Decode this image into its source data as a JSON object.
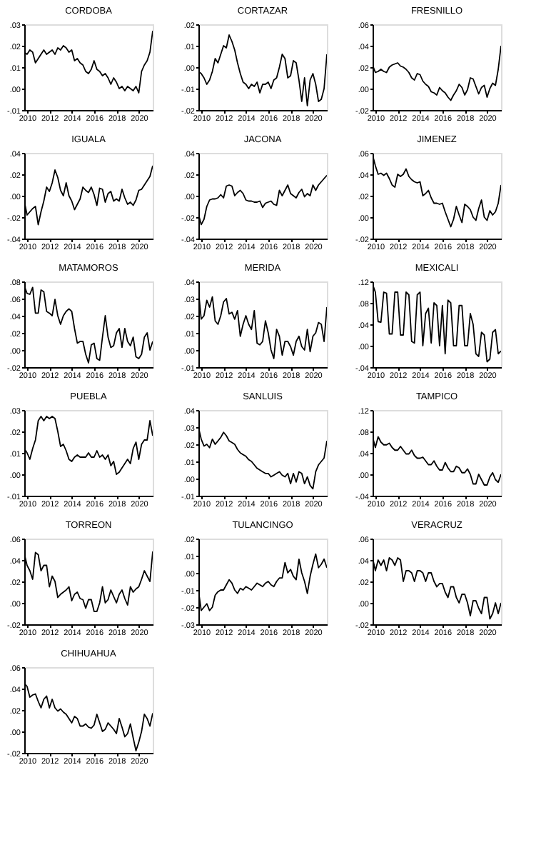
{
  "chart_data": [
    {
      "type": "line",
      "title": "CORDOBA",
      "color": "#000000",
      "xlim": [
        2009.75,
        2021.25
      ],
      "xticks": [
        2010,
        2012,
        2014,
        2016,
        2018,
        2020
      ],
      "ylim": [
        -0.01,
        0.03
      ],
      "yticks": [
        {
          "value": -0.01,
          "label": "-.01"
        },
        {
          "value": 0,
          "label": ".00"
        },
        {
          "value": 0.01,
          "label": ".01"
        },
        {
          "value": 0.02,
          "label": ".02"
        },
        {
          "value": 0.03,
          "label": ".03"
        }
      ],
      "x": [
        2009.75,
        2010,
        2010.25,
        2010.5,
        2010.75,
        2011,
        2011.25,
        2011.5,
        2011.75,
        2012,
        2012.25,
        2012.5,
        2012.75,
        2013,
        2013.25,
        2013.5,
        2013.75,
        2014,
        2014.25,
        2014.5,
        2014.75,
        2015,
        2015.25,
        2015.5,
        2015.75,
        2016,
        2016.25,
        2016.5,
        2016.75,
        2017,
        2017.25,
        2017.5,
        2017.75,
        2018,
        2018.25,
        2018.5,
        2018.75,
        2019,
        2019.25,
        2019.5,
        2019.75,
        2020,
        2020.25,
        2020.5,
        2020.75,
        2021,
        2021.25
      ],
      "values": [
        0.017,
        0.016,
        0.018,
        0.017,
        0.012,
        0.014,
        0.016,
        0.018,
        0.016,
        0.017,
        0.018,
        0.016,
        0.019,
        0.018,
        0.02,
        0.019,
        0.017,
        0.018,
        0.013,
        0.014,
        0.012,
        0.011,
        0.008,
        0.007,
        0.009,
        0.013,
        0.009,
        0.008,
        0.006,
        0.007,
        0.005,
        0.002,
        0.005,
        0.003,
        0.0,
        0.001,
        -0.001,
        0.001,
        0.0,
        -0.001,
        0.001,
        -0.002,
        0.008,
        0.011,
        0.013,
        0.017,
        0.027
      ]
    },
    {
      "type": "line",
      "title": "CORTAZAR",
      "color": "#000000",
      "xlim": [
        2009.75,
        2021.25
      ],
      "xticks": [
        2010,
        2012,
        2014,
        2016,
        2018,
        2020
      ],
      "ylim": [
        -0.02,
        0.02
      ],
      "yticks": [
        {
          "value": -0.02,
          "label": "-.02"
        },
        {
          "value": -0.01,
          "label": "-.01"
        },
        {
          "value": 0,
          "label": ".00"
        },
        {
          "value": 0.01,
          "label": ".01"
        },
        {
          "value": 0.02,
          "label": ".02"
        }
      ],
      "x": [
        2009.75,
        2010,
        2010.25,
        2010.5,
        2010.75,
        2011,
        2011.25,
        2011.5,
        2011.75,
        2012,
        2012.25,
        2012.5,
        2012.75,
        2013,
        2013.25,
        2013.5,
        2013.75,
        2014,
        2014.25,
        2014.5,
        2014.75,
        2015,
        2015.25,
        2015.5,
        2015.75,
        2016,
        2016.25,
        2016.5,
        2016.75,
        2017,
        2017.25,
        2017.5,
        2017.75,
        2018,
        2018.25,
        2018.5,
        2018.75,
        2019,
        2019.25,
        2019.5,
        2019.75,
        2020,
        2020.25,
        2020.5,
        2020.75,
        2021,
        2021.25
      ],
      "values": [
        -0.002,
        -0.003,
        -0.005,
        -0.008,
        -0.006,
        -0.002,
        0.004,
        0.002,
        0.006,
        0.01,
        0.009,
        0.015,
        0.012,
        0.008,
        0.002,
        -0.003,
        -0.007,
        -0.008,
        -0.01,
        -0.008,
        -0.009,
        -0.007,
        -0.012,
        -0.008,
        -0.008,
        -0.007,
        -0.01,
        -0.006,
        -0.005,
        0.0,
        0.006,
        0.004,
        -0.005,
        -0.004,
        0.003,
        0.002,
        -0.006,
        -0.016,
        -0.005,
        -0.018,
        -0.006,
        -0.003,
        -0.008,
        -0.016,
        -0.015,
        -0.01,
        0.006
      ]
    },
    {
      "type": "line",
      "title": "FRESNILLO",
      "color": "#000000",
      "xlim": [
        2009.75,
        2021.25
      ],
      "xticks": [
        2010,
        2012,
        2014,
        2016,
        2018,
        2020
      ],
      "ylim": [
        -0.02,
        0.06
      ],
      "yticks": [
        {
          "value": -0.02,
          "label": "-.02"
        },
        {
          "value": 0,
          "label": ".00"
        },
        {
          "value": 0.02,
          "label": ".02"
        },
        {
          "value": 0.04,
          "label": ".04"
        },
        {
          "value": 0.06,
          "label": ".06"
        }
      ],
      "x": [
        2009.75,
        2010,
        2010.25,
        2010.5,
        2010.75,
        2011,
        2011.25,
        2011.5,
        2011.75,
        2012,
        2012.25,
        2012.5,
        2012.75,
        2013,
        2013.25,
        2013.5,
        2013.75,
        2014,
        2014.25,
        2014.5,
        2014.75,
        2015,
        2015.25,
        2015.5,
        2015.75,
        2016,
        2016.25,
        2016.5,
        2016.75,
        2017,
        2017.25,
        2017.5,
        2017.75,
        2018,
        2018.25,
        2018.5,
        2018.75,
        2019,
        2019.25,
        2019.5,
        2019.75,
        2020,
        2020.25,
        2020.5,
        2020.75,
        2021,
        2021.25
      ],
      "values": [
        0.022,
        0.015,
        0.016,
        0.018,
        0.016,
        0.015,
        0.02,
        0.022,
        0.023,
        0.024,
        0.021,
        0.02,
        0.018,
        0.015,
        0.01,
        0.008,
        0.014,
        0.013,
        0.007,
        0.004,
        0.002,
        -0.003,
        -0.004,
        -0.006,
        0.001,
        -0.002,
        -0.004,
        -0.008,
        -0.011,
        -0.006,
        -0.002,
        0.004,
        0.001,
        -0.006,
        -0.001,
        0.01,
        0.009,
        0.002,
        -0.005,
        0.001,
        0.003,
        -0.008,
        0.0,
        0.005,
        0.003,
        0.018,
        0.04
      ]
    },
    {
      "type": "line",
      "title": "IGUALA",
      "color": "#000000",
      "xlim": [
        2009.75,
        2021.25
      ],
      "xticks": [
        2010,
        2012,
        2014,
        2016,
        2018,
        2020
      ],
      "ylim": [
        -0.04,
        0.04
      ],
      "yticks": [
        {
          "value": -0.04,
          "label": "-.04"
        },
        {
          "value": -0.02,
          "label": "-.02"
        },
        {
          "value": 0,
          "label": ".00"
        },
        {
          "value": 0.02,
          "label": ".02"
        },
        {
          "value": 0.04,
          "label": ".04"
        }
      ],
      "x": [
        2009.75,
        2010,
        2010.25,
        2010.5,
        2010.75,
        2011,
        2011.25,
        2011.5,
        2011.75,
        2012,
        2012.25,
        2012.5,
        2012.75,
        2013,
        2013.25,
        2013.5,
        2013.75,
        2014,
        2014.25,
        2014.5,
        2014.75,
        2015,
        2015.25,
        2015.5,
        2015.75,
        2016,
        2016.25,
        2016.5,
        2016.75,
        2017,
        2017.25,
        2017.5,
        2017.75,
        2018,
        2018.25,
        2018.5,
        2018.75,
        2019,
        2019.25,
        2019.5,
        2019.75,
        2020,
        2020.25,
        2020.5,
        2020.75,
        2021,
        2021.25
      ],
      "values": [
        -0.005,
        -0.018,
        -0.015,
        -0.012,
        -0.01,
        -0.027,
        -0.015,
        -0.005,
        0.008,
        0.004,
        0.012,
        0.024,
        0.017,
        0.005,
        0.0,
        0.012,
        0.0,
        -0.005,
        -0.013,
        -0.008,
        -0.003,
        0.008,
        0.005,
        0.003,
        0.008,
        0.001,
        -0.009,
        0.007,
        0.006,
        -0.006,
        0.002,
        0.004,
        -0.005,
        -0.003,
        -0.005,
        0.006,
        -0.002,
        -0.008,
        -0.006,
        -0.009,
        -0.004,
        0.005,
        0.006,
        0.01,
        0.014,
        0.018,
        0.028
      ]
    },
    {
      "type": "line",
      "title": "JACONA",
      "color": "#000000",
      "xlim": [
        2009.75,
        2021.25
      ],
      "xticks": [
        2010,
        2012,
        2014,
        2016,
        2018,
        2020
      ],
      "ylim": [
        -0.04,
        0.04
      ],
      "yticks": [
        {
          "value": -0.04,
          "label": "-.04"
        },
        {
          "value": -0.02,
          "label": "-.02"
        },
        {
          "value": 0,
          "label": ".00"
        },
        {
          "value": 0.02,
          "label": ".02"
        },
        {
          "value": 0.04,
          "label": ".04"
        }
      ],
      "x": [
        2009.75,
        2010,
        2010.25,
        2010.5,
        2010.75,
        2011,
        2011.25,
        2011.5,
        2011.75,
        2012,
        2012.25,
        2012.5,
        2012.75,
        2013,
        2013.25,
        2013.5,
        2013.75,
        2014,
        2014.25,
        2014.5,
        2014.75,
        2015,
        2015.25,
        2015.5,
        2015.75,
        2016,
        2016.25,
        2016.5,
        2016.75,
        2017,
        2017.25,
        2017.5,
        2017.75,
        2018,
        2018.25,
        2018.5,
        2018.75,
        2019,
        2019.25,
        2019.5,
        2019.75,
        2020,
        2020.25,
        2020.5,
        2020.75,
        2021,
        2021.25
      ],
      "values": [
        -0.017,
        -0.027,
        -0.022,
        -0.01,
        -0.004,
        -0.003,
        -0.003,
        -0.002,
        0.001,
        -0.002,
        0.009,
        0.01,
        0.009,
        0.0,
        0.003,
        0.005,
        0.002,
        -0.004,
        -0.005,
        -0.005,
        -0.006,
        -0.006,
        -0.005,
        -0.011,
        -0.007,
        -0.006,
        -0.005,
        -0.008,
        -0.009,
        0.005,
        0.0,
        0.005,
        0.01,
        0.002,
        0.0,
        -0.002,
        0.003,
        0.006,
        -0.001,
        0.002,
        0.0,
        0.01,
        0.005,
        0.01,
        0.013,
        0.016,
        0.019
      ]
    },
    {
      "type": "line",
      "title": "JIMENEZ",
      "color": "#000000",
      "xlim": [
        2009.75,
        2021.25
      ],
      "xticks": [
        2010,
        2012,
        2014,
        2016,
        2018,
        2020
      ],
      "ylim": [
        -0.02,
        0.06
      ],
      "yticks": [
        {
          "value": -0.02,
          "label": "-.02"
        },
        {
          "value": 0,
          "label": ".00"
        },
        {
          "value": 0.02,
          "label": ".02"
        },
        {
          "value": 0.04,
          "label": ".04"
        },
        {
          "value": 0.06,
          "label": ".06"
        }
      ],
      "x": [
        2009.75,
        2010,
        2010.25,
        2010.5,
        2010.75,
        2011,
        2011.25,
        2011.5,
        2011.75,
        2012,
        2012.25,
        2012.5,
        2012.75,
        2013,
        2013.25,
        2013.5,
        2013.75,
        2014,
        2014.25,
        2014.5,
        2014.75,
        2015,
        2015.25,
        2015.5,
        2015.75,
        2016,
        2016.25,
        2016.5,
        2016.75,
        2017,
        2017.25,
        2017.5,
        2017.75,
        2018,
        2018.25,
        2018.5,
        2018.75,
        2019,
        2019.25,
        2019.5,
        2019.75,
        2020,
        2020.25,
        2020.5,
        2020.75,
        2021,
        2021.25
      ],
      "values": [
        0.058,
        0.048,
        0.04,
        0.041,
        0.039,
        0.041,
        0.036,
        0.03,
        0.028,
        0.04,
        0.038,
        0.04,
        0.045,
        0.038,
        0.035,
        0.033,
        0.032,
        0.033,
        0.02,
        0.022,
        0.025,
        0.018,
        0.013,
        0.013,
        0.012,
        0.013,
        0.005,
        -0.002,
        -0.009,
        -0.002,
        0.01,
        0.002,
        -0.005,
        0.012,
        0.01,
        0.007,
        0.0,
        -0.003,
        0.008,
        0.016,
        0.0,
        -0.003,
        0.006,
        0.002,
        0.005,
        0.013,
        0.03
      ]
    },
    {
      "type": "line",
      "title": "MATAMOROS",
      "color": "#000000",
      "xlim": [
        2009.75,
        2021.25
      ],
      "xticks": [
        2010,
        2012,
        2014,
        2016,
        2018,
        2020
      ],
      "ylim": [
        -0.02,
        0.08
      ],
      "yticks": [
        {
          "value": -0.02,
          "label": "-.02"
        },
        {
          "value": 0,
          "label": ".00"
        },
        {
          "value": 0.02,
          "label": ".02"
        },
        {
          "value": 0.04,
          "label": ".04"
        },
        {
          "value": 0.06,
          "label": ".06"
        },
        {
          "value": 0.08,
          "label": ".08"
        }
      ],
      "x": [
        2009.75,
        2010,
        2010.25,
        2010.5,
        2010.75,
        2011,
        2011.25,
        2011.5,
        2011.75,
        2012,
        2012.25,
        2012.5,
        2012.75,
        2013,
        2013.25,
        2013.5,
        2013.75,
        2014,
        2014.25,
        2014.5,
        2014.75,
        2015,
        2015.25,
        2015.5,
        2015.75,
        2016,
        2016.25,
        2016.5,
        2016.75,
        2017,
        2017.25,
        2017.5,
        2017.75,
        2018,
        2018.25,
        2018.5,
        2018.75,
        2019,
        2019.25,
        2019.5,
        2019.75,
        2020,
        2020.25,
        2020.5,
        2020.75,
        2021,
        2021.25
      ],
      "values": [
        0.075,
        0.066,
        0.065,
        0.073,
        0.043,
        0.043,
        0.07,
        0.068,
        0.045,
        0.043,
        0.04,
        0.059,
        0.04,
        0.03,
        0.04,
        0.045,
        0.048,
        0.045,
        0.025,
        0.008,
        0.01,
        0.01,
        -0.005,
        -0.015,
        0.006,
        0.008,
        -0.01,
        -0.012,
        0.015,
        0.04,
        0.015,
        0.003,
        0.005,
        0.02,
        0.025,
        0.003,
        0.025,
        0.01,
        0.005,
        0.015,
        -0.008,
        -0.01,
        -0.005,
        0.015,
        0.02,
        0.0,
        0.01
      ]
    },
    {
      "type": "line",
      "title": "MERIDA",
      "color": "#000000",
      "xlim": [
        2009.75,
        2021.25
      ],
      "xticks": [
        2010,
        2012,
        2014,
        2016,
        2018,
        2020
      ],
      "ylim": [
        -0.01,
        0.04
      ],
      "yticks": [
        {
          "value": -0.01,
          "label": "-.01"
        },
        {
          "value": 0,
          "label": ".00"
        },
        {
          "value": 0.01,
          "label": ".01"
        },
        {
          "value": 0.02,
          "label": ".02"
        },
        {
          "value": 0.03,
          "label": ".03"
        },
        {
          "value": 0.04,
          "label": ".04"
        }
      ],
      "x": [
        2009.75,
        2010,
        2010.25,
        2010.5,
        2010.75,
        2011,
        2011.25,
        2011.5,
        2011.75,
        2012,
        2012.25,
        2012.5,
        2012.75,
        2013,
        2013.25,
        2013.5,
        2013.75,
        2014,
        2014.25,
        2014.5,
        2014.75,
        2015,
        2015.25,
        2015.5,
        2015.75,
        2016,
        2016.25,
        2016.5,
        2016.75,
        2017,
        2017.25,
        2017.5,
        2017.75,
        2018,
        2018.25,
        2018.5,
        2018.75,
        2019,
        2019.25,
        2019.5,
        2019.75,
        2020,
        2020.25,
        2020.5,
        2020.75,
        2021,
        2021.25
      ],
      "values": [
        0.035,
        0.018,
        0.02,
        0.029,
        0.025,
        0.031,
        0.017,
        0.015,
        0.02,
        0.028,
        0.03,
        0.021,
        0.022,
        0.018,
        0.023,
        0.008,
        0.015,
        0.02,
        0.015,
        0.012,
        0.023,
        0.004,
        0.003,
        0.005,
        0.017,
        0.01,
        0.0,
        -0.005,
        0.012,
        0.008,
        -0.003,
        0.005,
        0.005,
        0.002,
        -0.003,
        0.005,
        0.008,
        0.002,
        0.0,
        0.012,
        -0.001,
        0.008,
        0.01,
        0.016,
        0.015,
        0.005,
        0.025
      ]
    },
    {
      "type": "line",
      "title": "MEXICALI",
      "color": "#000000",
      "xlim": [
        2009.75,
        2021.25
      ],
      "xticks": [
        2010,
        2012,
        2014,
        2016,
        2018,
        2020
      ],
      "ylim": [
        -0.04,
        0.12
      ],
      "yticks": [
        {
          "value": -0.04,
          "label": "-.04"
        },
        {
          "value": 0,
          "label": ".00"
        },
        {
          "value": 0.04,
          "label": ".04"
        },
        {
          "value": 0.08,
          "label": ".08"
        },
        {
          "value": 0.12,
          "label": ".12"
        }
      ],
      "x": [
        2009.75,
        2010,
        2010.25,
        2010.5,
        2010.75,
        2011,
        2011.25,
        2011.5,
        2011.75,
        2012,
        2012.25,
        2012.5,
        2012.75,
        2013,
        2013.25,
        2013.5,
        2013.75,
        2014,
        2014.25,
        2014.5,
        2014.75,
        2015,
        2015.25,
        2015.5,
        2015.75,
        2016,
        2016.25,
        2016.5,
        2016.75,
        2017,
        2017.25,
        2017.5,
        2017.75,
        2018,
        2018.25,
        2018.5,
        2018.75,
        2019,
        2019.25,
        2019.5,
        2019.75,
        2020,
        2020.25,
        2020.5,
        2020.75,
        2021,
        2021.25
      ],
      "values": [
        0.115,
        0.1,
        0.045,
        0.044,
        0.1,
        0.098,
        0.022,
        0.022,
        0.1,
        0.1,
        0.02,
        0.02,
        0.1,
        0.095,
        0.008,
        0.005,
        0.095,
        0.1,
        0.0,
        0.06,
        0.07,
        0.005,
        0.08,
        0.075,
        0.0,
        0.075,
        -0.015,
        0.085,
        0.08,
        0.0,
        0.0,
        0.075,
        0.075,
        0.0,
        0.0,
        0.06,
        0.04,
        -0.015,
        -0.02,
        0.025,
        0.02,
        -0.03,
        -0.025,
        0.025,
        0.03,
        -0.015,
        -0.01
      ]
    },
    {
      "type": "line",
      "title": "PUEBLA",
      "color": "#000000",
      "xlim": [
        2009.75,
        2021.25
      ],
      "xticks": [
        2010,
        2012,
        2014,
        2016,
        2018,
        2020
      ],
      "ylim": [
        -0.01,
        0.03
      ],
      "yticks": [
        {
          "value": -0.01,
          "label": "-.01"
        },
        {
          "value": 0,
          "label": ".00"
        },
        {
          "value": 0.01,
          "label": ".01"
        },
        {
          "value": 0.02,
          "label": ".02"
        },
        {
          "value": 0.03,
          "label": ".03"
        }
      ],
      "x": [
        2009.75,
        2010,
        2010.25,
        2010.5,
        2010.75,
        2011,
        2011.25,
        2011.5,
        2011.75,
        2012,
        2012.25,
        2012.5,
        2012.75,
        2013,
        2013.25,
        2013.5,
        2013.75,
        2014,
        2014.25,
        2014.5,
        2014.75,
        2015,
        2015.25,
        2015.5,
        2015.75,
        2016,
        2016.25,
        2016.5,
        2016.75,
        2017,
        2017.25,
        2017.5,
        2017.75,
        2018,
        2018.25,
        2018.5,
        2018.75,
        2019,
        2019.25,
        2019.5,
        2019.75,
        2020,
        2020.25,
        2020.5,
        2020.75,
        2021,
        2021.25
      ],
      "values": [
        0.012,
        0.01,
        0.007,
        0.012,
        0.016,
        0.025,
        0.027,
        0.025,
        0.027,
        0.026,
        0.027,
        0.026,
        0.02,
        0.013,
        0.014,
        0.011,
        0.007,
        0.006,
        0.008,
        0.009,
        0.008,
        0.008,
        0.008,
        0.01,
        0.008,
        0.008,
        0.011,
        0.008,
        0.009,
        0.007,
        0.009,
        0.004,
        0.006,
        0.0,
        0.001,
        0.003,
        0.005,
        0.007,
        0.005,
        0.012,
        0.015,
        0.007,
        0.014,
        0.016,
        0.016,
        0.025,
        0.018
      ]
    },
    {
      "type": "line",
      "title": "SANLUIS",
      "color": "#000000",
      "xlim": [
        2009.75,
        2021.25
      ],
      "xticks": [
        2010,
        2012,
        2014,
        2016,
        2018,
        2020
      ],
      "ylim": [
        -0.01,
        0.04
      ],
      "yticks": [
        {
          "value": -0.01,
          "label": "-.01"
        },
        {
          "value": 0,
          "label": ".00"
        },
        {
          "value": 0.01,
          "label": ".01"
        },
        {
          "value": 0.02,
          "label": ".02"
        },
        {
          "value": 0.03,
          "label": ".03"
        },
        {
          "value": 0.04,
          "label": ".04"
        }
      ],
      "x": [
        2009.75,
        2010,
        2010.25,
        2010.5,
        2010.75,
        2011,
        2011.25,
        2011.5,
        2011.75,
        2012,
        2012.25,
        2012.5,
        2012.75,
        2013,
        2013.25,
        2013.5,
        2013.75,
        2014,
        2014.25,
        2014.5,
        2014.75,
        2015,
        2015.25,
        2015.5,
        2015.75,
        2016,
        2016.25,
        2016.5,
        2016.75,
        2017,
        2017.25,
        2017.5,
        2017.75,
        2018,
        2018.25,
        2018.5,
        2018.75,
        2019,
        2019.25,
        2019.5,
        2019.75,
        2020,
        2020.25,
        2020.5,
        2020.75,
        2021,
        2021.25
      ],
      "values": [
        0.03,
        0.023,
        0.019,
        0.02,
        0.018,
        0.023,
        0.02,
        0.022,
        0.024,
        0.027,
        0.025,
        0.022,
        0.021,
        0.02,
        0.017,
        0.015,
        0.014,
        0.013,
        0.011,
        0.01,
        0.008,
        0.006,
        0.005,
        0.004,
        0.003,
        0.003,
        0.001,
        0.002,
        0.003,
        0.004,
        0.002,
        0.001,
        0.003,
        -0.003,
        0.003,
        -0.002,
        0.004,
        0.003,
        -0.003,
        0.001,
        -0.004,
        -0.006,
        0.004,
        0.008,
        0.01,
        0.012,
        0.022
      ]
    },
    {
      "type": "line",
      "title": "TAMPICO",
      "color": "#000000",
      "xlim": [
        2009.75,
        2021.25
      ],
      "xticks": [
        2010,
        2012,
        2014,
        2016,
        2018,
        2020
      ],
      "ylim": [
        -0.04,
        0.12
      ],
      "yticks": [
        {
          "value": -0.04,
          "label": "-.04"
        },
        {
          "value": 0,
          "label": ".00"
        },
        {
          "value": 0.04,
          "label": ".04"
        },
        {
          "value": 0.08,
          "label": ".08"
        },
        {
          "value": 0.12,
          "label": ".12"
        }
      ],
      "x": [
        2009.75,
        2010,
        2010.25,
        2010.5,
        2010.75,
        2011,
        2011.25,
        2011.5,
        2011.75,
        2012,
        2012.25,
        2012.5,
        2012.75,
        2013,
        2013.25,
        2013.5,
        2013.75,
        2014,
        2014.25,
        2014.5,
        2014.75,
        2015,
        2015.25,
        2015.5,
        2015.75,
        2016,
        2016.25,
        2016.5,
        2016.75,
        2017,
        2017.25,
        2017.5,
        2017.75,
        2018,
        2018.25,
        2018.5,
        2018.75,
        2019,
        2019.25,
        2019.5,
        2019.75,
        2020,
        2020.25,
        2020.5,
        2020.75,
        2021,
        2021.25
      ],
      "values": [
        0.07,
        0.05,
        0.07,
        0.06,
        0.055,
        0.055,
        0.058,
        0.05,
        0.045,
        0.045,
        0.052,
        0.045,
        0.038,
        0.038,
        0.045,
        0.035,
        0.03,
        0.03,
        0.032,
        0.025,
        0.018,
        0.018,
        0.025,
        0.015,
        0.008,
        0.008,
        0.022,
        0.012,
        0.005,
        0.005,
        0.015,
        0.012,
        0.003,
        0.003,
        0.01,
        0.0,
        -0.018,
        -0.018,
        0.0,
        -0.01,
        -0.02,
        -0.02,
        -0.005,
        0.003,
        -0.01,
        -0.015,
        0.0
      ]
    },
    {
      "type": "line",
      "title": "TORREON",
      "color": "#000000",
      "xlim": [
        2009.75,
        2021.25
      ],
      "xticks": [
        2010,
        2012,
        2014,
        2016,
        2018,
        2020
      ],
      "ylim": [
        -0.02,
        0.06
      ],
      "yticks": [
        {
          "value": -0.02,
          "label": "-.02"
        },
        {
          "value": 0,
          "label": ".00"
        },
        {
          "value": 0.02,
          "label": ".02"
        },
        {
          "value": 0.04,
          "label": ".04"
        },
        {
          "value": 0.06,
          "label": ".06"
        }
      ],
      "x": [
        2009.75,
        2010,
        2010.25,
        2010.5,
        2010.75,
        2011,
        2011.25,
        2011.5,
        2011.75,
        2012,
        2012.25,
        2012.5,
        2012.75,
        2013,
        2013.25,
        2013.5,
        2013.75,
        2014,
        2014.25,
        2014.5,
        2014.75,
        2015,
        2015.25,
        2015.5,
        2015.75,
        2016,
        2016.25,
        2016.5,
        2016.75,
        2017,
        2017.25,
        2017.5,
        2017.75,
        2018,
        2018.25,
        2018.5,
        2018.75,
        2019,
        2019.25,
        2019.5,
        2019.75,
        2020,
        2020.25,
        2020.5,
        2020.75,
        2021,
        2021.25
      ],
      "values": [
        0.046,
        0.035,
        0.03,
        0.022,
        0.047,
        0.045,
        0.03,
        0.035,
        0.035,
        0.015,
        0.025,
        0.02,
        0.005,
        0.008,
        0.01,
        0.012,
        0.015,
        0.002,
        0.008,
        0.01,
        0.004,
        0.003,
        -0.005,
        0.003,
        0.003,
        -0.008,
        -0.008,
        0.0,
        0.015,
        0.0,
        0.003,
        0.012,
        0.006,
        0.0,
        0.008,
        0.012,
        0.004,
        -0.002,
        0.015,
        0.01,
        0.013,
        0.015,
        0.022,
        0.03,
        0.025,
        0.02,
        0.048
      ]
    },
    {
      "type": "line",
      "title": "TULANCINGO",
      "color": "#000000",
      "xlim": [
        2009.75,
        2021.25
      ],
      "xticks": [
        2010,
        2012,
        2014,
        2016,
        2018,
        2020
      ],
      "ylim": [
        -0.03,
        0.02
      ],
      "yticks": [
        {
          "value": -0.03,
          "label": "-.03"
        },
        {
          "value": -0.02,
          "label": "-.02"
        },
        {
          "value": -0.01,
          "label": "-.01"
        },
        {
          "value": 0,
          "label": ".00"
        },
        {
          "value": 0.01,
          "label": ".01"
        },
        {
          "value": 0.02,
          "label": ".02"
        }
      ],
      "x": [
        2009.75,
        2010,
        2010.25,
        2010.5,
        2010.75,
        2011,
        2011.25,
        2011.5,
        2011.75,
        2012,
        2012.25,
        2012.5,
        2012.75,
        2013,
        2013.25,
        2013.5,
        2013.75,
        2014,
        2014.25,
        2014.5,
        2014.75,
        2015,
        2015.25,
        2015.5,
        2015.75,
        2016,
        2016.25,
        2016.5,
        2016.75,
        2017,
        2017.25,
        2017.5,
        2017.75,
        2018,
        2018.25,
        2018.5,
        2018.75,
        2019,
        2019.25,
        2019.5,
        2019.75,
        2020,
        2020.25,
        2020.5,
        2020.75,
        2021,
        2021.25
      ],
      "values": [
        -0.01,
        -0.022,
        -0.02,
        -0.018,
        -0.022,
        -0.02,
        -0.013,
        -0.011,
        -0.01,
        -0.01,
        -0.007,
        -0.004,
        -0.006,
        -0.01,
        -0.012,
        -0.009,
        -0.01,
        -0.008,
        -0.009,
        -0.01,
        -0.008,
        -0.006,
        -0.007,
        -0.008,
        -0.006,
        -0.005,
        -0.007,
        -0.008,
        -0.005,
        -0.003,
        -0.003,
        0.006,
        0.0,
        0.002,
        -0.002,
        -0.004,
        0.008,
        0.0,
        -0.005,
        -0.012,
        -0.002,
        0.005,
        0.011,
        0.003,
        0.005,
        0.008,
        0.003
      ]
    },
    {
      "type": "line",
      "title": "VERACRUZ",
      "color": "#000000",
      "xlim": [
        2009.75,
        2021.25
      ],
      "xticks": [
        2010,
        2012,
        2014,
        2016,
        2018,
        2020
      ],
      "ylim": [
        -0.02,
        0.06
      ],
      "yticks": [
        {
          "value": -0.02,
          "label": "-.02"
        },
        {
          "value": 0,
          "label": ".00"
        },
        {
          "value": 0.02,
          "label": ".02"
        },
        {
          "value": 0.04,
          "label": ".04"
        },
        {
          "value": 0.06,
          "label": ".06"
        }
      ],
      "x": [
        2009.75,
        2010,
        2010.25,
        2010.5,
        2010.75,
        2011,
        2011.25,
        2011.5,
        2011.75,
        2012,
        2012.25,
        2012.5,
        2012.75,
        2013,
        2013.25,
        2013.5,
        2013.75,
        2014,
        2014.25,
        2014.5,
        2014.75,
        2015,
        2015.25,
        2015.5,
        2015.75,
        2016,
        2016.25,
        2016.5,
        2016.75,
        2017,
        2017.25,
        2017.5,
        2017.75,
        2018,
        2018.25,
        2018.5,
        2018.75,
        2019,
        2019.25,
        2019.5,
        2019.75,
        2020,
        2020.25,
        2020.5,
        2020.75,
        2021,
        2021.25
      ],
      "values": [
        0.042,
        0.03,
        0.04,
        0.035,
        0.04,
        0.03,
        0.042,
        0.04,
        0.035,
        0.042,
        0.04,
        0.02,
        0.03,
        0.03,
        0.028,
        0.02,
        0.03,
        0.03,
        0.028,
        0.02,
        0.028,
        0.028,
        0.02,
        0.015,
        0.018,
        0.018,
        0.01,
        0.005,
        0.015,
        0.015,
        0.005,
        0.0,
        0.008,
        0.008,
        0.0,
        -0.012,
        0.002,
        0.002,
        -0.005,
        -0.01,
        0.005,
        0.005,
        -0.015,
        -0.01,
        0.0,
        -0.01,
        0.0
      ]
    },
    {
      "type": "line",
      "title": "CHIHUAHUA",
      "color": "#000000",
      "xlim": [
        2009.75,
        2021.25
      ],
      "xticks": [
        2010,
        2012,
        2014,
        2016,
        2018,
        2020
      ],
      "ylim": [
        -0.02,
        0.06
      ],
      "yticks": [
        {
          "value": -0.02,
          "label": "-.02"
        },
        {
          "value": 0,
          "label": ".00"
        },
        {
          "value": 0.02,
          "label": ".02"
        },
        {
          "value": 0.04,
          "label": ".04"
        },
        {
          "value": 0.06,
          "label": ".06"
        }
      ],
      "x": [
        2009.75,
        2010,
        2010.25,
        2010.5,
        2010.75,
        2011,
        2011.25,
        2011.5,
        2011.75,
        2012,
        2012.25,
        2012.5,
        2012.75,
        2013,
        2013.25,
        2013.5,
        2013.75,
        2014,
        2014.25,
        2014.5,
        2014.75,
        2015,
        2015.25,
        2015.5,
        2015.75,
        2016,
        2016.25,
        2016.5,
        2016.75,
        2017,
        2017.25,
        2017.5,
        2017.75,
        2018,
        2018.25,
        2018.5,
        2018.75,
        2019,
        2019.25,
        2019.5,
        2019.75,
        2020,
        2020.25,
        2020.5,
        2020.75,
        2021,
        2021.25
      ],
      "values": [
        0.045,
        0.042,
        0.032,
        0.034,
        0.035,
        0.028,
        0.022,
        0.03,
        0.033,
        0.022,
        0.03,
        0.022,
        0.019,
        0.021,
        0.018,
        0.016,
        0.012,
        0.008,
        0.014,
        0.012,
        0.005,
        0.005,
        0.007,
        0.004,
        0.003,
        0.006,
        0.016,
        0.008,
        0.0,
        0.002,
        0.008,
        0.005,
        0.002,
        -0.002,
        0.012,
        0.004,
        -0.005,
        -0.002,
        0.007,
        -0.006,
        -0.018,
        -0.01,
        0.0,
        0.016,
        0.012,
        0.005,
        0.017
      ]
    }
  ]
}
